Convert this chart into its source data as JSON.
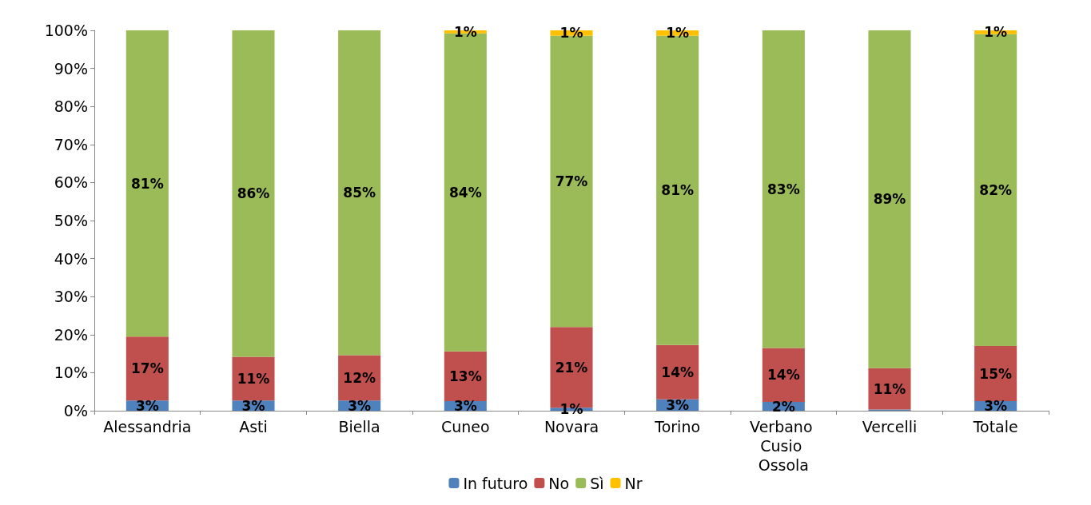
{
  "chart_data": {
    "type": "bar",
    "stacked": true,
    "categories": [
      "Alessandria",
      "Asti",
      "Biella",
      "Cuneo",
      "Novara",
      "Torino",
      "Verbano Cusio Ossola",
      "Vercelli",
      "Totale"
    ],
    "series": [
      {
        "name": "In futuro",
        "color": "#4f81bd",
        "values": [
          2.7,
          2.7,
          2.7,
          2.5,
          0.8,
          3.0,
          2.3,
          0.3,
          2.5
        ],
        "value_labels": [
          "3%",
          "3%",
          "3%",
          "3%",
          "1%",
          "3%",
          "2%",
          null,
          "3%"
        ]
      },
      {
        "name": "No",
        "color": "#c0504d",
        "values": [
          16.8,
          11.5,
          11.9,
          13.1,
          21.2,
          14.3,
          14.2,
          10.9,
          14.5
        ],
        "value_labels": [
          "17%",
          "11%",
          "12%",
          "13%",
          "21%",
          "14%",
          "14%",
          "11%",
          "15%"
        ]
      },
      {
        "name": "Sì",
        "color": "#9bbb59",
        "values": [
          80.5,
          85.8,
          85.4,
          83.6,
          76.6,
          81.3,
          83.5,
          88.8,
          82.0
        ],
        "value_labels": [
          "81%",
          "86%",
          "85%",
          "84%",
          "77%",
          "81%",
          "83%",
          "89%",
          "82%"
        ]
      },
      {
        "name": "Nr",
        "color": "#ffc000",
        "values": [
          null,
          null,
          null,
          1.0,
          1.4,
          1.4,
          null,
          null,
          1.0
        ],
        "value_labels": [
          null,
          null,
          null,
          "1%",
          "1%",
          "1%",
          null,
          null,
          "1%"
        ]
      }
    ],
    "ylim": [
      0,
      100
    ],
    "yticks": [
      {
        "value": 0,
        "label": "0%"
      },
      {
        "value": 10,
        "label": "10%"
      },
      {
        "value": 20,
        "label": "20%"
      },
      {
        "value": 30,
        "label": "30%"
      },
      {
        "value": 40,
        "label": "40%"
      },
      {
        "value": 50,
        "label": "50%"
      },
      {
        "value": 60,
        "label": "60%"
      },
      {
        "value": 70,
        "label": "70%"
      },
      {
        "value": 80,
        "label": "80%"
      },
      {
        "value": 90,
        "label": "90%"
      },
      {
        "value": 100,
        "label": "100%"
      }
    ],
    "grid": false,
    "legend": "bottom"
  }
}
